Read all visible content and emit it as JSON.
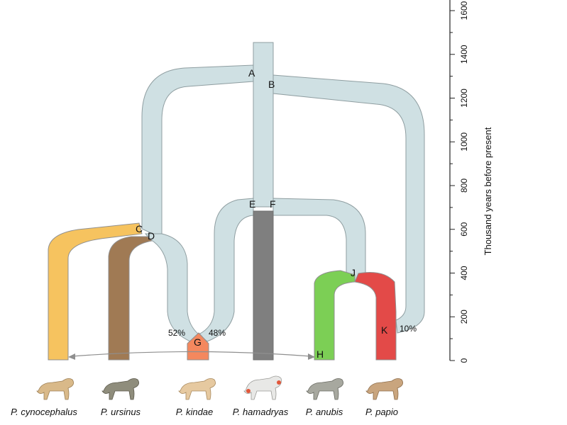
{
  "axis": {
    "title": "Thousand years before present",
    "ticks": [
      "0",
      "200",
      "400",
      "600",
      "800",
      "1000",
      "1200",
      "1400",
      "1600"
    ]
  },
  "nodes": [
    "A",
    "B",
    "C",
    "D",
    "E",
    "F",
    "G",
    "H",
    "J",
    "K"
  ],
  "admixture": {
    "left": "52%",
    "right": "48%",
    "papio": "10%"
  },
  "species": [
    {
      "name": "P. cynocephalus",
      "color": "#f6c35f"
    },
    {
      "name": "P. ursinus",
      "color": "#a07a54"
    },
    {
      "name": "P. kindae",
      "color": "#f4885e"
    },
    {
      "name": "P. hamadryas",
      "color": "#7f7f7f"
    },
    {
      "name": "P. anubis",
      "color": "#7ccf55"
    },
    {
      "name": "P. papio",
      "color": "#e34a48"
    }
  ],
  "tree_color": "#cfe0e3"
}
